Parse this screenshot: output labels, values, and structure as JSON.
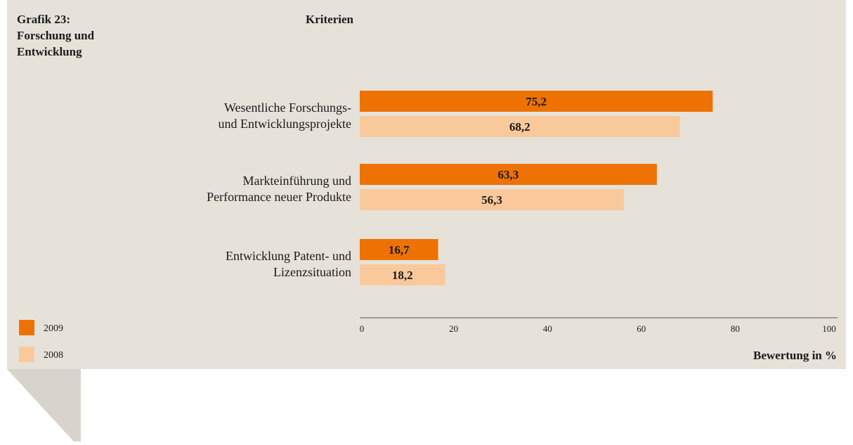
{
  "chart_data": {
    "type": "hbar",
    "title": [
      "Grafik 23:",
      "Forschung und",
      "Entwicklung"
    ],
    "category_heading": "Kriterien",
    "categories": [
      [
        "Wesentliche Forschungs-",
        "und Entwicklungsprojekte"
      ],
      [
        "Markteinführung und",
        "Performance neuer Produkte"
      ],
      [
        "Entwicklung Patent- und",
        "Lizenzsituation"
      ]
    ],
    "series": [
      {
        "name": "2009",
        "color": "#ee7203",
        "values": [
          75.2,
          63.3,
          16.7
        ],
        "value_labels": [
          "75,2",
          "63,3",
          "16,7"
        ]
      },
      {
        "name": "2008",
        "color": "#f9c99c",
        "values": [
          68.2,
          56.3,
          18.2
        ],
        "value_labels": [
          "68,2",
          "56,3",
          "18,2"
        ]
      }
    ],
    "xlim": [
      0,
      100
    ],
    "xticks": [
      0,
      20,
      40,
      60,
      80,
      100
    ],
    "x_label": "Bewertung in %",
    "legend": "bottom-left"
  }
}
